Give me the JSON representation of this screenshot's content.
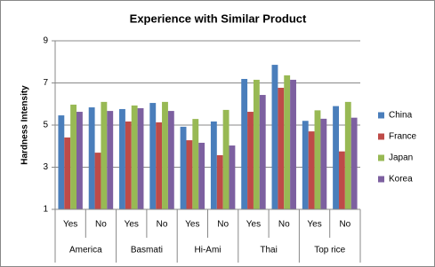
{
  "chart_data": {
    "type": "bar",
    "title": "Experience with Similar Product",
    "y_label": "Hardness Intensity",
    "categories": [
      "Yes",
      "No",
      "Yes",
      "No",
      "Yes",
      "No",
      "Yes",
      "No",
      "Yes",
      "No"
    ],
    "category_groups": [
      "America",
      "Basmati",
      "Hi-Ami",
      "Thai",
      "Top rice"
    ],
    "series": [
      {
        "name": "China",
        "color": "#4a7ebb",
        "values": [
          5.46,
          5.84,
          5.76,
          6.05,
          4.92,
          5.17,
          7.19,
          7.86,
          5.2,
          5.9
        ]
      },
      {
        "name": "France",
        "color": "#be4b48",
        "values": [
          4.41,
          3.69,
          5.17,
          5.13,
          4.28,
          3.57,
          5.63,
          6.77,
          4.7,
          3.75
        ]
      },
      {
        "name": "Japan",
        "color": "#98b954",
        "values": [
          5.97,
          6.1,
          5.93,
          6.1,
          5.29,
          5.72,
          7.15,
          7.36,
          5.7,
          6.1
        ]
      },
      {
        "name": "Korea",
        "color": "#7d60a0",
        "values": [
          5.63,
          5.67,
          5.8,
          5.67,
          4.16,
          4.03,
          6.43,
          7.15,
          5.3,
          5.35
        ]
      }
    ],
    "ylim": [
      1,
      9
    ],
    "yticks": [
      1,
      3,
      5,
      7,
      9
    ],
    "grid": true,
    "legend": "right"
  }
}
